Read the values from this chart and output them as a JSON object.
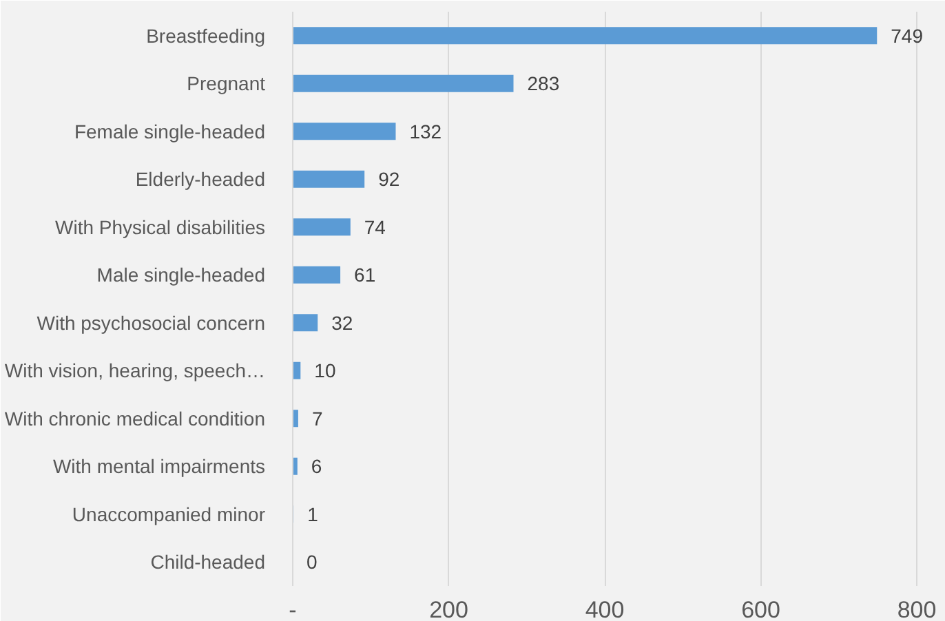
{
  "chart_data": {
    "type": "bar",
    "orientation": "horizontal",
    "categories": [
      "Breastfeeding",
      "Pregnant",
      "Female single-headed",
      "Elderly-headed",
      "With Physical disabilities",
      "Male single-headed",
      "With psychosocial concern",
      "With vision, hearing, speech…",
      "With chronic medical condition",
      "With mental impairments",
      "Unaccompanied minor",
      "Child-headed"
    ],
    "values": [
      749,
      283,
      132,
      92,
      74,
      61,
      32,
      10,
      7,
      6,
      1,
      0
    ],
    "color": "#5b9bd5",
    "data_labels": true,
    "grid": "x",
    "xlim": [
      0,
      830
    ],
    "xticks": [
      {
        "value": 0,
        "label": "-"
      },
      200,
      400,
      600,
      800
    ]
  }
}
